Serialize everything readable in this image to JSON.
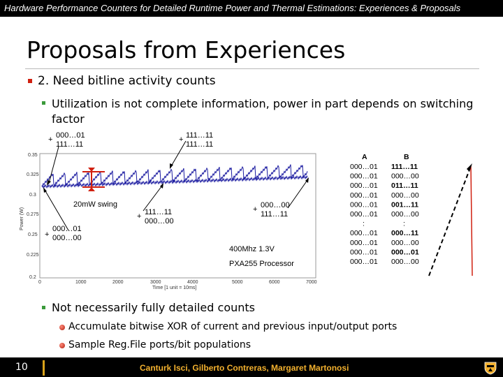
{
  "header": {
    "title": "Hardware Performance Counters for Detailed Runtime Power and Thermal Estimations: Experiences & Proposals"
  },
  "slide": {
    "title": "Proposals from Experiences",
    "bullet1": "2. Need bitline activity counts",
    "bullet2": "Utilization is not complete information, power in part depends on switching factor",
    "bullet3": "Not necessarily fully detailed counts",
    "sub1": "Accumulate bitwise XOR of current and previous input/output ports",
    "sub2": "Sample Reg.File ports/bit populations"
  },
  "figure": {
    "ann1": [
      "000…01",
      "111…11"
    ],
    "ann2": [
      "111…11",
      "111…11"
    ],
    "ann3": [
      "000…01",
      "000…00"
    ],
    "ann4": [
      "111…11",
      "000…00"
    ],
    "ann5": [
      "000…00",
      "111…11"
    ],
    "plus": "+",
    "swing": "20mW swing",
    "note1": "400Mhz 1.3V",
    "note2": "PXA255 Processor",
    "ylabel": "Power (W)",
    "xlabel": "Time [1 unit = 10ms]",
    "yticks": [
      "0.35",
      "0.325",
      "0.3",
      "0.275",
      "0.25",
      "0.225",
      "0.2"
    ],
    "xticks": [
      "0",
      "1000",
      "2000",
      "3000",
      "4000",
      "5000",
      "6000",
      "7000"
    ],
    "table": {
      "colA": "A",
      "colB": "B",
      "rowsA": [
        "000…01",
        "000…01",
        "000…01",
        "000…01",
        "000…01",
        "000…01",
        ":",
        "000…01",
        "000…01",
        "000…01",
        "000…01"
      ],
      "rowsB": [
        "111…11",
        "000…00",
        "011…11",
        "000…00",
        "001…11",
        "000…00",
        ":",
        "000…11",
        "000…00",
        "000…01",
        "000…00"
      ],
      "boldB": [
        true,
        false,
        true,
        false,
        true,
        false,
        false,
        true,
        false,
        true,
        false
      ]
    }
  },
  "footer": {
    "page": "10",
    "authors": "Canturk Isci, Gilberto Contreras, Margaret Martonosi"
  },
  "colors": {
    "accent": "#d02010",
    "trace": "#1a1aa0",
    "gold": "#f2b02e"
  }
}
